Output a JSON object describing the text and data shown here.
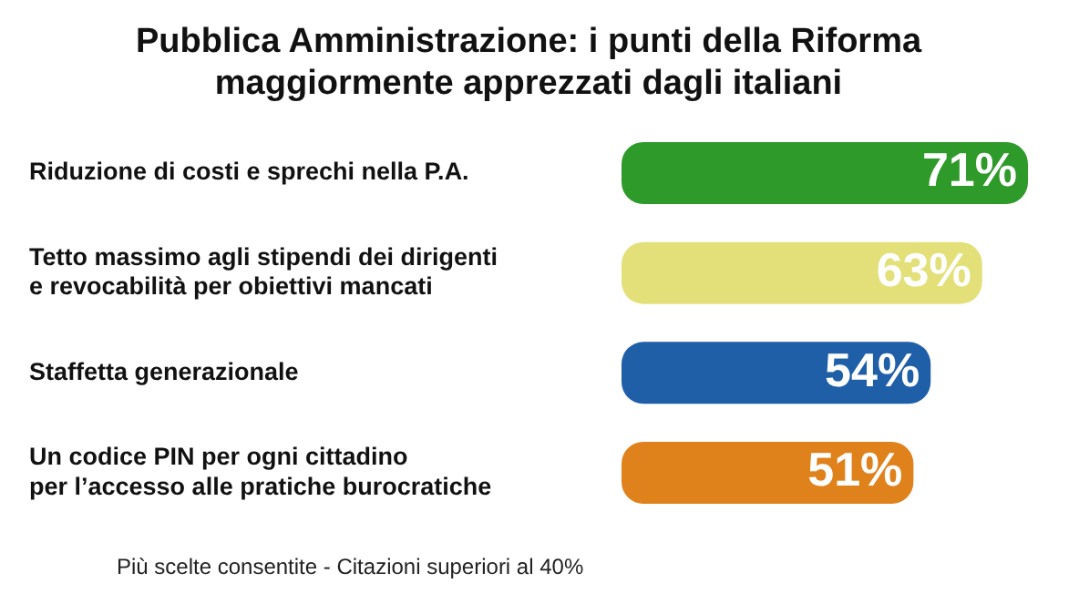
{
  "chart_data": {
    "type": "bar",
    "orientation": "horizontal",
    "title": "Pubblica Amministrazione: i punti della Riforma\nmaggiormente apprezzati dagli italiani",
    "categories": [
      "Riduzione di costi e sprechi nella P.A.",
      "Tetto massimo agli stipendi dei dirigenti\ne revocabilità per obiettivi mancati",
      "Staffetta generazionale",
      "Un codice PIN per ogni cittadino\nper l’accesso alle pratiche burocratiche"
    ],
    "values": [
      71,
      63,
      54,
      51
    ],
    "colors": [
      "#2e9a2a",
      "#e3e07a",
      "#1f5fa8",
      "#e0821c"
    ],
    "value_labels": [
      "71%",
      "63%",
      "54%",
      "51%"
    ],
    "xlim": [
      0,
      71
    ],
    "annotations": [
      "Più scelte consentite - Citazioni superiori al 40%"
    ]
  }
}
